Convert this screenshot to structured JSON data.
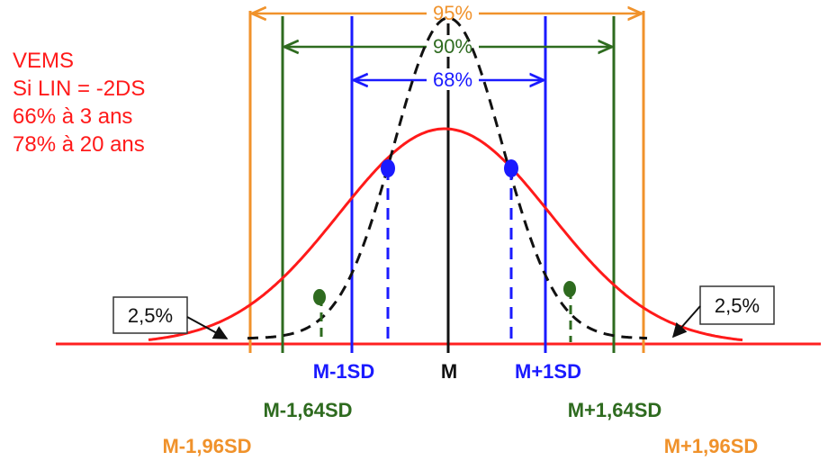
{
  "colors": {
    "red": "#ff1a1a",
    "black": "#111111",
    "blue": "#1a1aff",
    "green": "#2e6b1f",
    "orange": "#f0922b",
    "axis": "#ff2020"
  },
  "side_note": {
    "lines": [
      "VEMS",
      "Si LIN = -2DS",
      "66% à 3 ans",
      "78% à 20 ans"
    ]
  },
  "intervals": {
    "p95": "95%",
    "p90": "90%",
    "p68": "68%"
  },
  "tails": {
    "left": "2,5%",
    "right": "2,5%"
  },
  "axis_labels": {
    "m_minus_1sd": "M-1SD",
    "m": "M",
    "m_plus_1sd": "M+1SD",
    "m_minus_164sd": "M-1,64SD",
    "m_plus_164sd": "M+1,64SD",
    "m_minus_196sd": "M-1,96SD",
    "m_plus_196sd": "M+1,96SD"
  }
}
